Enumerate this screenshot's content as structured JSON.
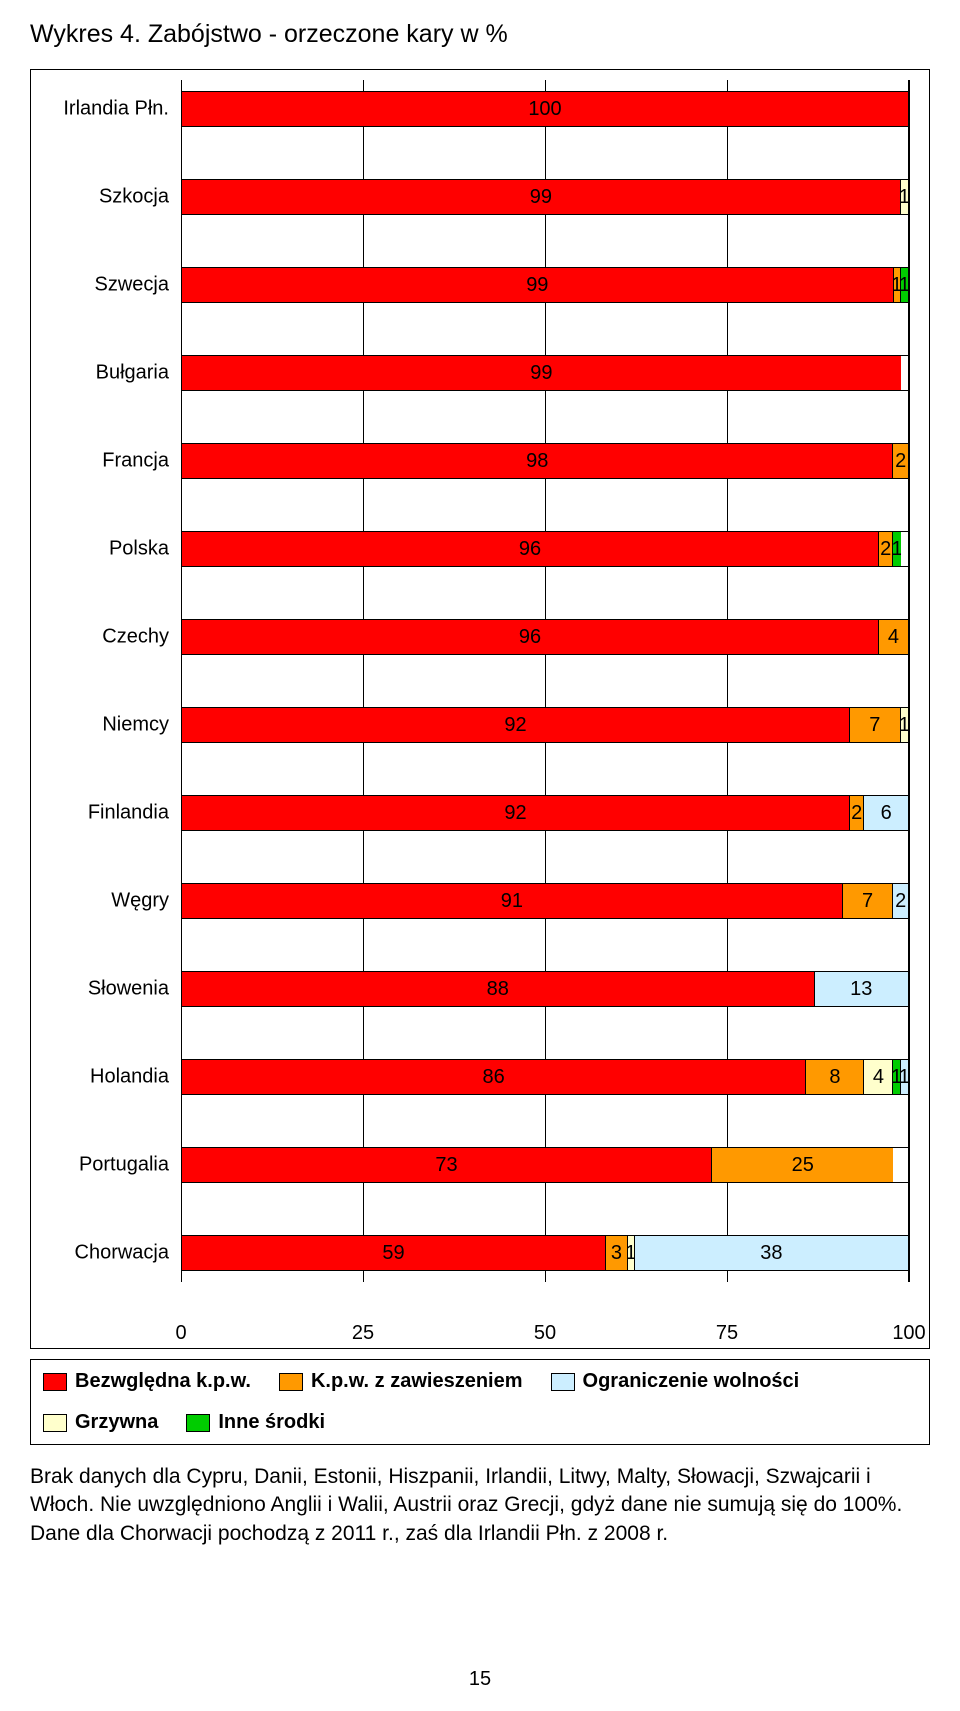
{
  "title": "Wykres 4. Zabójstwo - orzeczone kary w %",
  "chart": {
    "type": "stacked-horizontal-bar",
    "xlim": [
      0,
      100
    ],
    "xticks": [
      0,
      25,
      50,
      75,
      100
    ],
    "background_color": "#ffffff",
    "grid_color": "#000000",
    "bar_border_color": "#000000",
    "label_fontsize": 20,
    "title_fontsize": 25,
    "series": [
      {
        "key": "bez",
        "label": "Bezwględna k.p.w.",
        "color": "#ff0000"
      },
      {
        "key": "zaw",
        "label": "K.p.w. z zawieszeniem",
        "color": "#ff9900"
      },
      {
        "key": "ogr",
        "label": "Ograniczenie wolności",
        "color": "#cceeff"
      },
      {
        "key": "grz",
        "label": "Grzywna",
        "color": "#ffffcc"
      },
      {
        "key": "inne",
        "label": "Inne środki",
        "color": "#00cc00"
      }
    ],
    "rows": [
      {
        "label": "Irlandia Płn.",
        "segments": [
          {
            "k": "bez",
            "v": 100
          }
        ]
      },
      {
        "label": "Szkocja",
        "segments": [
          {
            "k": "bez",
            "v": 99
          },
          {
            "k": "grz",
            "v": 1
          }
        ]
      },
      {
        "label": "Szwecja",
        "segments": [
          {
            "k": "bez",
            "v": 99
          },
          {
            "k": "zaw",
            "v": 1
          },
          {
            "k": "inne",
            "v": 1
          }
        ]
      },
      {
        "label": "Bułgaria",
        "segments": [
          {
            "k": "bez",
            "v": 99
          }
        ]
      },
      {
        "label": "Francja",
        "segments": [
          {
            "k": "bez",
            "v": 98
          },
          {
            "k": "zaw",
            "v": 2
          }
        ]
      },
      {
        "label": "Polska",
        "segments": [
          {
            "k": "bez",
            "v": 96
          },
          {
            "k": "zaw",
            "v": 2
          },
          {
            "k": "inne",
            "v": 1
          }
        ]
      },
      {
        "label": "Czechy",
        "segments": [
          {
            "k": "bez",
            "v": 96
          },
          {
            "k": "zaw",
            "v": 4
          }
        ]
      },
      {
        "label": "Niemcy",
        "segments": [
          {
            "k": "bez",
            "v": 92
          },
          {
            "k": "zaw",
            "v": 7
          },
          {
            "k": "grz",
            "v": 1
          }
        ]
      },
      {
        "label": "Finlandia",
        "segments": [
          {
            "k": "bez",
            "v": 92
          },
          {
            "k": "zaw",
            "v": 2
          },
          {
            "k": "ogr",
            "v": 6
          }
        ]
      },
      {
        "label": "Węgry",
        "segments": [
          {
            "k": "bez",
            "v": 91
          },
          {
            "k": "zaw",
            "v": 7
          },
          {
            "k": "ogr",
            "v": 2
          }
        ]
      },
      {
        "label": "Słowenia",
        "segments": [
          {
            "k": "bez",
            "v": 88
          },
          {
            "k": "ogr",
            "v": 13
          }
        ]
      },
      {
        "label": "Holandia",
        "segments": [
          {
            "k": "bez",
            "v": 86
          },
          {
            "k": "zaw",
            "v": 8
          },
          {
            "k": "grz",
            "v": 4
          },
          {
            "k": "inne",
            "v": 1
          },
          {
            "k": "ogr",
            "v": 1
          }
        ]
      },
      {
        "label": "Portugalia",
        "segments": [
          {
            "k": "bez",
            "v": 73
          },
          {
            "k": "zaw",
            "v": 25
          }
        ]
      },
      {
        "label": "Chorwacja",
        "segments": [
          {
            "k": "bez",
            "v": 59
          },
          {
            "k": "zaw",
            "v": 3
          },
          {
            "k": "grz",
            "v": 1
          },
          {
            "k": "ogr",
            "v": 38
          }
        ]
      }
    ]
  },
  "legend": {
    "items": [
      {
        "label": "Bezwględna k.p.w.",
        "color": "#ff0000"
      },
      {
        "label": "K.p.w. z zawieszeniem",
        "color": "#ff9900"
      },
      {
        "label": "Ograniczenie wolności",
        "color": "#cceeff"
      },
      {
        "label": "Grzywna",
        "color": "#ffffcc"
      },
      {
        "label": "Inne środki",
        "color": "#00cc00"
      }
    ]
  },
  "footnote": "Brak danych dla Cypru, Danii, Estonii, Hiszpanii, Irlandii, Litwy, Malty, Słowacji, Szwajcarii i Włoch. Nie uwzględniono Anglii i Walii, Austrii oraz Grecji, gdyż dane nie sumują się do 100%. Dane dla Chorwacji pochodzą z 2011 r., zaś dla Irlandii Płn. z 2008 r.",
  "page_number": "15"
}
